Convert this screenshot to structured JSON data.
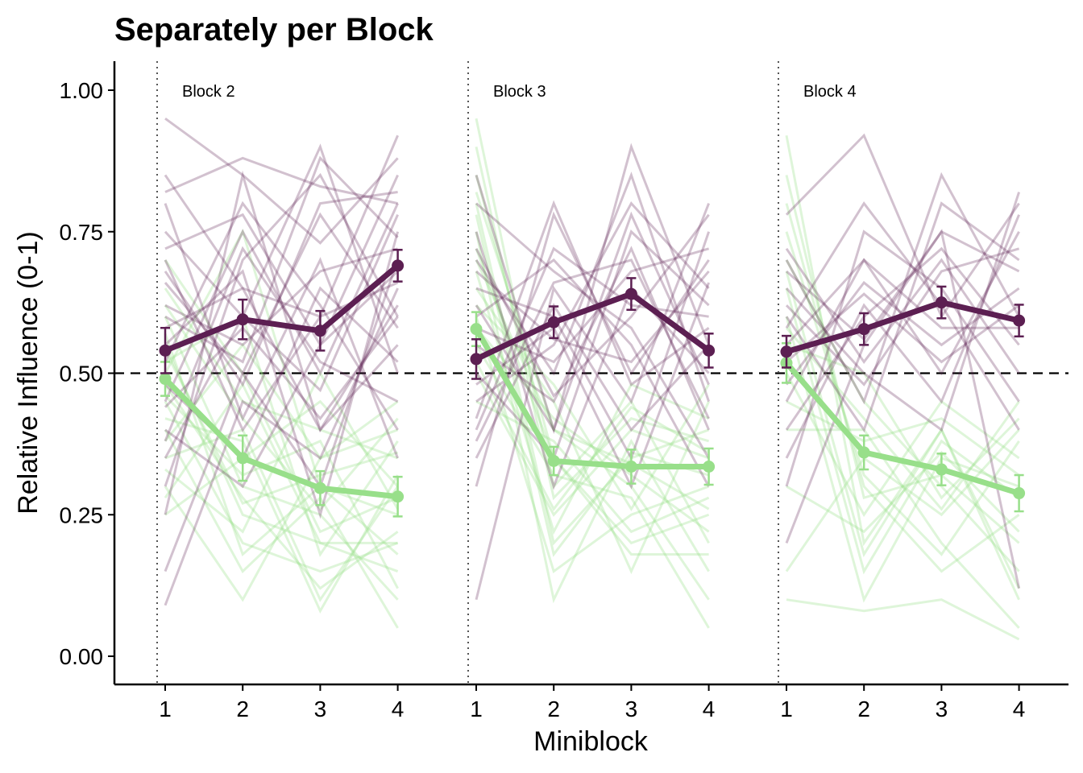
{
  "chart_data": {
    "type": "line",
    "title": "Separately per Block",
    "xlabel": "Miniblock",
    "ylabel": "Relative Influence (0-1)",
    "ylim": [
      -0.05,
      1.05
    ],
    "y_ticks": [
      "0.00",
      "0.25",
      "0.50",
      "0.75",
      "1.00"
    ],
    "y_tick_values": [
      0,
      0.25,
      0.5,
      0.75,
      1.0
    ],
    "x_ticks": [
      "1",
      "2",
      "3",
      "4"
    ],
    "reference_line": 0.5,
    "grid": false,
    "legend": "none",
    "colors": {
      "purple": "#5c1f52",
      "green": "#98df8a",
      "axis": "#000000",
      "divider": "#555555"
    },
    "blocks": [
      {
        "label": "Block 2",
        "series": [
          {
            "color": "purple",
            "values": [
              0.54,
              0.595,
              0.575,
              0.69
            ],
            "errors": [
              0.04,
              0.035,
              0.035,
              0.028
            ]
          },
          {
            "color": "green",
            "values": [
              0.49,
              0.35,
              0.297,
              0.282
            ],
            "errors": [
              0.03,
              0.04,
              0.03,
              0.035
            ]
          }
        ]
      },
      {
        "label": "Block 3",
        "series": [
          {
            "color": "purple",
            "values": [
              0.525,
              0.59,
              0.64,
              0.54
            ],
            "errors": [
              0.035,
              0.028,
              0.028,
              0.03
            ]
          },
          {
            "color": "green",
            "values": [
              0.578,
              0.345,
              0.335,
              0.335
            ],
            "errors": [
              0.03,
              0.025,
              0.03,
              0.032
            ]
          }
        ]
      },
      {
        "label": "Block 4",
        "series": [
          {
            "color": "purple",
            "values": [
              0.538,
              0.578,
              0.625,
              0.593
            ],
            "errors": [
              0.028,
              0.028,
              0.028,
              0.028
            ]
          },
          {
            "color": "green",
            "values": [
              0.518,
              0.36,
              0.33,
              0.288
            ],
            "errors": [
              0.035,
              0.03,
              0.028,
              0.032
            ]
          }
        ]
      }
    ],
    "individual_lines": [
      {
        "block": "Block 2",
        "purple": [
          [
            0.95,
            0.85,
            0.73,
            0.88
          ],
          [
            0.82,
            0.88,
            0.83,
            0.8
          ],
          [
            0.15,
            0.5,
            0.3,
            0.7
          ],
          [
            0.7,
            0.4,
            0.6,
            0.92
          ],
          [
            0.58,
            0.65,
            0.4,
            0.55
          ],
          [
            0.45,
            0.75,
            0.5,
            0.8
          ],
          [
            0.3,
            0.7,
            0.85,
            0.6
          ],
          [
            0.62,
            0.55,
            0.68,
            0.72
          ],
          [
            0.09,
            0.45,
            0.35,
            0.65
          ],
          [
            0.75,
            0.6,
            0.9,
            0.5
          ],
          [
            0.4,
            0.3,
            0.55,
            0.85
          ],
          [
            0.52,
            0.8,
            0.62,
            0.4
          ],
          [
            0.35,
            0.6,
            0.47,
            0.78
          ],
          [
            0.66,
            0.5,
            0.78,
            0.58
          ],
          [
            0.25,
            0.85,
            0.4,
            0.62
          ],
          [
            0.8,
            0.42,
            0.7,
            0.35
          ],
          [
            0.55,
            0.68,
            0.25,
            0.75
          ],
          [
            0.48,
            0.35,
            0.65,
            0.52
          ],
          [
            0.72,
            0.78,
            0.55,
            0.68
          ],
          [
            0.6,
            0.52,
            0.88,
            0.74
          ],
          [
            0.38,
            0.72,
            0.52,
            0.45
          ],
          [
            0.68,
            0.48,
            0.8,
            0.82
          ],
          [
            0.44,
            0.58,
            0.42,
            0.6
          ],
          [
            0.85,
            0.65,
            0.6,
            0.66
          ]
        ],
        "green": [
          [
            0.6,
            0.3,
            0.25,
            0.1
          ],
          [
            0.45,
            0.2,
            0.15,
            0.2
          ],
          [
            0.35,
            0.4,
            0.1,
            0.3
          ],
          [
            0.5,
            0.75,
            0.3,
            0.25
          ],
          [
            0.3,
            0.1,
            0.35,
            0.4
          ],
          [
            0.55,
            0.25,
            0.2,
            0.15
          ],
          [
            0.65,
            0.45,
            0.4,
            0.35
          ],
          [
            0.4,
            0.15,
            0.28,
            0.05
          ],
          [
            0.25,
            0.35,
            0.45,
            0.3
          ],
          [
            0.7,
            0.5,
            0.22,
            0.28
          ],
          [
            0.48,
            0.28,
            0.12,
            0.22
          ],
          [
            0.38,
            0.55,
            0.35,
            0.45
          ],
          [
            0.57,
            0.18,
            0.3,
            0.18
          ],
          [
            0.42,
            0.38,
            0.08,
            0.32
          ],
          [
            0.33,
            0.22,
            0.5,
            0.26
          ],
          [
            0.52,
            0.6,
            0.18,
            0.38
          ],
          [
            0.46,
            0.32,
            0.38,
            0.12
          ],
          [
            0.62,
            0.42,
            0.26,
            0.42
          ],
          [
            0.28,
            0.48,
            0.2,
            0.2
          ],
          [
            0.54,
            0.27,
            0.32,
            0.36
          ]
        ]
      },
      {
        "block": "Block 3",
        "purple": [
          [
            0.85,
            0.4,
            0.9,
            0.55
          ],
          [
            0.1,
            0.65,
            0.45,
            0.8
          ],
          [
            0.6,
            0.7,
            0.55,
            0.3
          ],
          [
            0.45,
            0.55,
            0.8,
            0.65
          ],
          [
            0.75,
            0.3,
            0.65,
            0.5
          ],
          [
            0.3,
            0.78,
            0.5,
            0.7
          ],
          [
            0.55,
            0.45,
            0.72,
            0.4
          ],
          [
            0.65,
            0.6,
            0.35,
            0.75
          ],
          [
            0.4,
            0.72,
            0.62,
            0.6
          ],
          [
            0.7,
            0.5,
            0.85,
            0.45
          ],
          [
            0.35,
            0.62,
            0.4,
            0.55
          ],
          [
            0.5,
            0.35,
            0.75,
            0.62
          ],
          [
            0.8,
            0.68,
            0.58,
            0.35
          ],
          [
            0.58,
            0.52,
            0.68,
            0.72
          ],
          [
            0.42,
            0.8,
            0.48,
            0.58
          ],
          [
            0.62,
            0.4,
            0.78,
            0.48
          ],
          [
            0.48,
            0.58,
            0.3,
            0.66
          ],
          [
            0.72,
            0.46,
            0.6,
            0.78
          ],
          [
            0.38,
            0.66,
            0.7,
            0.42
          ],
          [
            0.68,
            0.56,
            0.52,
            0.68
          ]
        ],
        "green": [
          [
            0.95,
            0.3,
            0.45,
            0.2
          ],
          [
            0.8,
            0.2,
            0.35,
            0.4
          ],
          [
            0.7,
            0.4,
            0.3,
            0.1
          ],
          [
            0.6,
            0.15,
            0.25,
            0.3
          ],
          [
            0.85,
            0.35,
            0.2,
            0.25
          ],
          [
            0.5,
            0.25,
            0.4,
            0.35
          ],
          [
            0.65,
            0.45,
            0.15,
            0.45
          ],
          [
            0.75,
            0.1,
            0.38,
            0.15
          ],
          [
            0.55,
            0.32,
            0.28,
            0.05
          ],
          [
            0.9,
            0.28,
            0.42,
            0.38
          ],
          [
            0.45,
            0.38,
            0.22,
            0.28
          ],
          [
            0.68,
            0.22,
            0.48,
            0.42
          ],
          [
            0.58,
            0.42,
            0.32,
            0.22
          ],
          [
            0.78,
            0.18,
            0.36,
            0.32
          ],
          [
            0.62,
            0.48,
            0.26,
            0.48
          ],
          [
            0.72,
            0.35,
            0.18,
            0.18
          ],
          [
            0.52,
            0.26,
            0.44,
            0.36
          ],
          [
            0.82,
            0.4,
            0.34,
            0.26
          ]
        ]
      },
      {
        "block": "Block 4",
        "purple": [
          [
            0.78,
            0.92,
            0.6,
            0.8
          ],
          [
            0.2,
            0.55,
            0.75,
            0.12
          ],
          [
            0.7,
            0.45,
            0.85,
            0.6
          ],
          [
            0.55,
            0.7,
            0.5,
            0.75
          ],
          [
            0.4,
            0.6,
            0.72,
            0.55
          ],
          [
            0.65,
            0.5,
            0.4,
            0.82
          ],
          [
            0.3,
            0.75,
            0.65,
            0.45
          ],
          [
            0.6,
            0.4,
            0.8,
            0.7
          ],
          [
            0.48,
            0.66,
            0.55,
            0.65
          ],
          [
            0.72,
            0.52,
            0.7,
            0.5
          ],
          [
            0.35,
            0.62,
            0.45,
            0.78
          ],
          [
            0.58,
            0.8,
            0.62,
            0.4
          ],
          [
            0.68,
            0.56,
            0.75,
            0.68
          ],
          [
            0.45,
            0.7,
            0.58,
            0.58
          ],
          [
            0.62,
            0.48,
            0.68,
            0.72
          ],
          [
            0.52,
            0.64,
            0.52,
            0.62
          ]
        ],
        "green": [
          [
            0.92,
            0.2,
            0.4,
            0.1
          ],
          [
            0.8,
            0.3,
            0.15,
            0.25
          ],
          [
            0.6,
            0.1,
            0.35,
            0.3
          ],
          [
            0.15,
            0.35,
            0.25,
            0.4
          ],
          [
            0.7,
            0.45,
            0.3,
            0.15
          ],
          [
            0.5,
            0.25,
            0.45,
            0.35
          ],
          [
            0.4,
            0.4,
            0.2,
            0.05
          ],
          [
            0.65,
            0.15,
            0.38,
            0.28
          ],
          [
            0.55,
            0.5,
            0.28,
            0.42
          ],
          [
            0.85,
            0.28,
            0.32,
            0.2
          ],
          [
            0.1,
            0.08,
            0.1,
            0.03
          ],
          [
            0.45,
            0.38,
            0.42,
            0.32
          ],
          [
            0.75,
            0.32,
            0.18,
            0.38
          ],
          [
            0.3,
            0.22,
            0.36,
            0.22
          ],
          [
            0.58,
            0.42,
            0.26,
            0.45
          ],
          [
            0.68,
            0.18,
            0.4,
            0.12
          ]
        ]
      }
    ]
  }
}
